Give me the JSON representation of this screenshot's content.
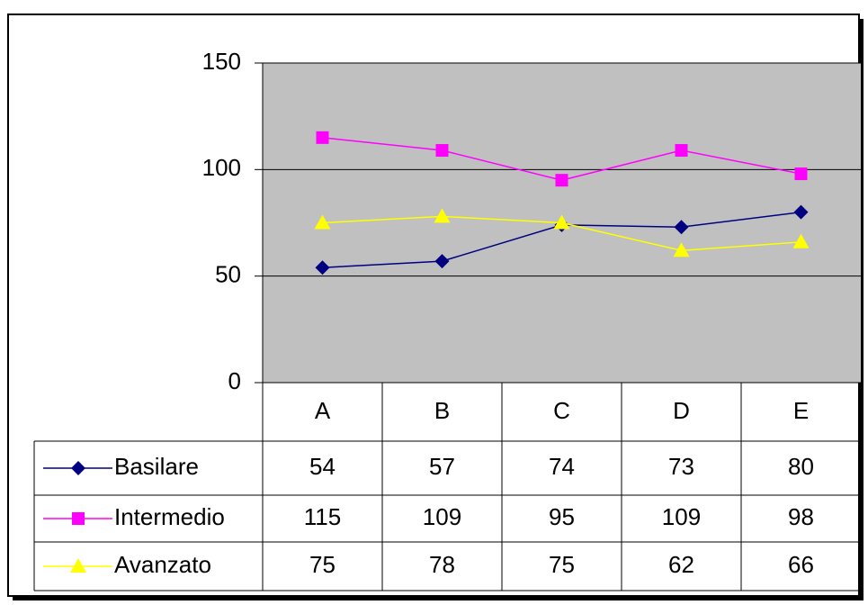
{
  "chart_data": {
    "type": "line",
    "categories": [
      "A",
      "B",
      "C",
      "D",
      "E"
    ],
    "series": [
      {
        "name": "Basilare",
        "color": "#000080",
        "marker": "diamond",
        "values": [
          54,
          57,
          74,
          73,
          80
        ]
      },
      {
        "name": "Intermedio",
        "color": "#ff00ff",
        "marker": "square",
        "values": [
          115,
          109,
          95,
          109,
          98
        ]
      },
      {
        "name": "Avanzato",
        "color": "#ffff00",
        "marker": "triangle",
        "values": [
          75,
          78,
          75,
          62,
          66
        ]
      }
    ],
    "ylim": [
      0,
      150
    ],
    "yticks": [
      0,
      50,
      100,
      150
    ],
    "grid": true,
    "plot_background": "#c0c0c0",
    "data_table": true
  }
}
